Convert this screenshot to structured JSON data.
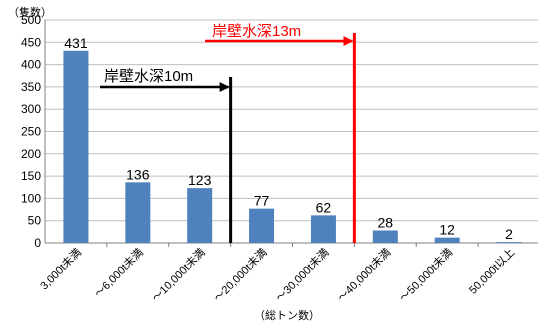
{
  "chart_data": {
    "type": "bar",
    "ylabel": "（隻数）",
    "xlabel": "（総トン数）",
    "ylim": [
      0,
      500
    ],
    "yticks": [
      0,
      50,
      100,
      150,
      200,
      250,
      300,
      350,
      400,
      450,
      500
    ],
    "grid": true,
    "categories": [
      "3,000t未満",
      "～6,000t未満",
      "～10,000t未満",
      "～20,000t未満",
      "～30,000t未満",
      "～40,000t未満",
      "～50,000t未満",
      "50,000t以上"
    ],
    "values": [
      431,
      136,
      123,
      77,
      62,
      28,
      12,
      2
    ],
    "bar_color": "#4f81bd",
    "annotations": [
      {
        "text": "岸壁水深10m",
        "color": "#000000",
        "between_categories": [
          2,
          3
        ]
      },
      {
        "text": "岸壁水深13m",
        "color": "#ff0000",
        "between_categories": [
          4,
          5
        ]
      }
    ]
  }
}
